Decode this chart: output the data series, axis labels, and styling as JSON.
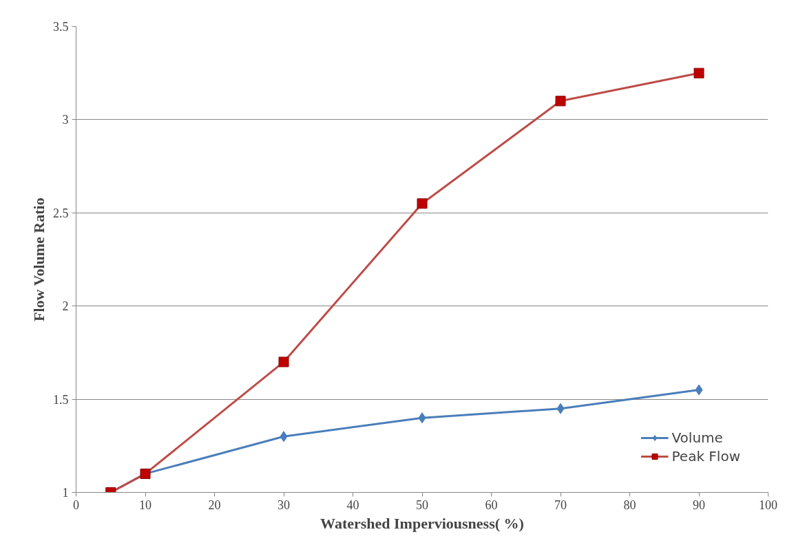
{
  "chart_data": {
    "type": "line",
    "xlabel": "Watershed Imperviousness( %)",
    "ylabel": "Flow Volume Ratio",
    "xlim": [
      0,
      100
    ],
    "xticks": [
      0,
      10,
      20,
      30,
      40,
      50,
      60,
      70,
      80,
      90,
      100
    ],
    "ylim": [
      1,
      3.5
    ],
    "yticks": [
      1,
      1.5,
      2,
      2.5,
      3,
      3.5
    ],
    "grid": "y",
    "legend": "bottom right",
    "line_style": "solid",
    "series": [
      {
        "name": "Volume",
        "color": "#4a7ebb",
        "marker": "diamond",
        "x": [
          5,
          10,
          30,
          50,
          70,
          90
        ],
        "values": [
          1.0,
          1.1,
          1.3,
          1.4,
          1.45,
          1.55
        ]
      },
      {
        "name": "Peak Flow",
        "color": "#be4b48",
        "marker": "square",
        "x": [
          5,
          10,
          30,
          50,
          70,
          90
        ],
        "values": [
          1.0,
          1.1,
          1.7,
          2.55,
          3.1,
          3.25
        ]
      }
    ]
  }
}
